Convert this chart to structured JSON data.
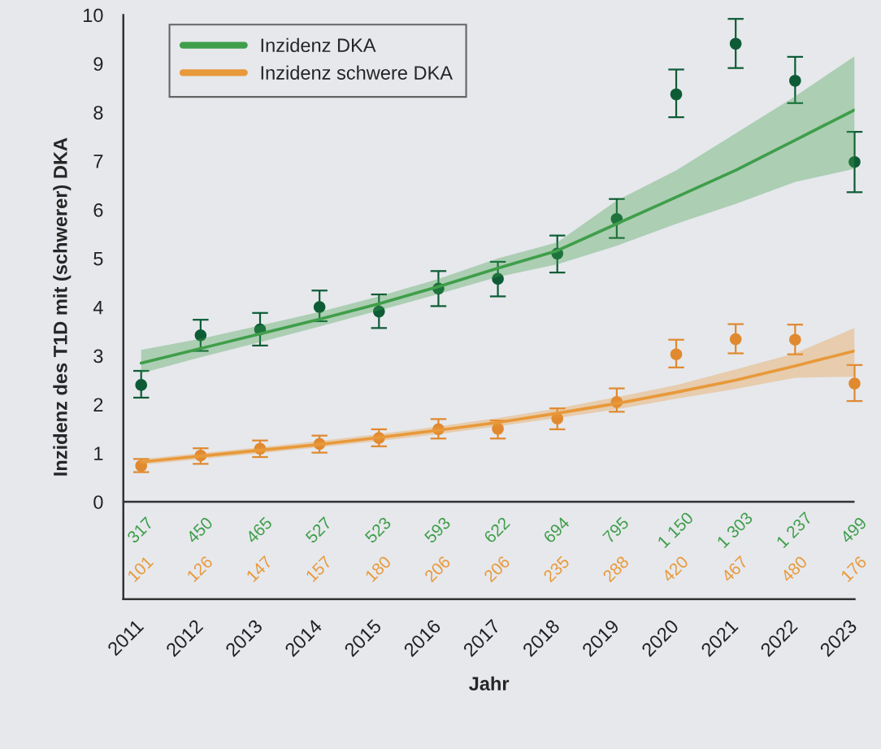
{
  "chart_data": {
    "type": "line",
    "xlabel": "Jahr",
    "ylabel": "Inzidenz des T1D mit (schwerer) DKA",
    "x": [
      2011,
      2012,
      2013,
      2014,
      2015,
      2016,
      2017,
      2018,
      2019,
      2020,
      2021,
      2022,
      2023
    ],
    "series": [
      {
        "type": "scatter",
        "marker": "circle",
        "color": "#0d5c36",
        "values": [
          2.4,
          3.42,
          3.54,
          4.0,
          3.91,
          4.38,
          4.58,
          5.1,
          5.81,
          8.37,
          9.41,
          8.65,
          6.98
        ],
        "errors": [
          [
            2.14,
            2.69
          ],
          [
            3.1,
            3.74
          ],
          [
            3.21,
            3.88
          ],
          [
            3.71,
            4.34
          ],
          [
            3.57,
            4.26
          ],
          [
            4.02,
            4.74
          ],
          [
            4.22,
            4.93
          ],
          [
            4.71,
            5.47
          ],
          [
            5.42,
            6.22
          ],
          [
            7.9,
            8.88
          ],
          [
            8.91,
            9.92
          ],
          [
            8.19,
            9.14
          ],
          [
            6.36,
            7.6
          ]
        ]
      },
      {
        "type": "scatter",
        "marker": "circle",
        "color": "#e0892f",
        "values": [
          0.74,
          0.95,
          1.09,
          1.19,
          1.31,
          1.49,
          1.5,
          1.71,
          2.05,
          3.03,
          3.34,
          3.33,
          2.43
        ],
        "errors": [
          [
            0.61,
            0.88
          ],
          [
            0.78,
            1.1
          ],
          [
            0.92,
            1.26
          ],
          [
            1.01,
            1.36
          ],
          [
            1.14,
            1.49
          ],
          [
            1.3,
            1.7
          ],
          [
            1.3,
            1.67
          ],
          [
            1.49,
            1.92
          ],
          [
            1.85,
            2.33
          ],
          [
            2.76,
            3.33
          ],
          [
            3.05,
            3.65
          ],
          [
            3.03,
            3.64
          ],
          [
            2.07,
            2.81
          ]
        ]
      },
      {
        "name": "Inzidenz DKA",
        "color": "#3f9e4a",
        "values": [
          2.85,
          3.15,
          3.45,
          3.75,
          4.07,
          4.42,
          4.8,
          5.16,
          5.71,
          6.26,
          6.81,
          7.43,
          8.05
        ],
        "lower": [
          2.64,
          2.97,
          3.28,
          3.6,
          3.93,
          4.27,
          4.62,
          4.88,
          5.26,
          5.71,
          6.12,
          6.57,
          6.84
        ],
        "upper": [
          3.12,
          3.35,
          3.62,
          3.9,
          4.22,
          4.58,
          5.0,
          5.33,
          6.19,
          6.81,
          7.57,
          8.33,
          9.15
        ]
      },
      {
        "name": "Inzidenz schwere DKA",
        "color": "#e8993a",
        "values": [
          0.82,
          0.94,
          1.06,
          1.18,
          1.32,
          1.47,
          1.63,
          1.82,
          2.02,
          2.25,
          2.5,
          2.79,
          3.1
        ],
        "lower": [
          0.76,
          0.88,
          1.0,
          1.12,
          1.25,
          1.39,
          1.55,
          1.72,
          1.9,
          2.12,
          2.32,
          2.55,
          2.57
        ],
        "upper": [
          0.88,
          1.0,
          1.12,
          1.25,
          1.39,
          1.55,
          1.72,
          1.92,
          2.15,
          2.4,
          2.72,
          3.05,
          3.57
        ]
      }
    ],
    "xlim": [
      2010.7,
      2023.0
    ],
    "xticks": [
      2011,
      2012,
      2013,
      2014,
      2015,
      2016,
      2017,
      2018,
      2019,
      2020,
      2021,
      2022,
      2023
    ],
    "ylim": [
      -2.0,
      10.0
    ],
    "yticks": [
      0,
      1,
      2,
      3,
      4,
      5,
      6,
      7,
      8,
      9,
      10
    ],
    "ref_lines": [
      {
        "axis": "y",
        "value": 0,
        "color": "#333333"
      }
    ],
    "annotations": [
      "317",
      "450",
      "465",
      "527",
      "523",
      "593",
      "622",
      "694",
      "795",
      "1 150",
      "1 303",
      "1 237",
      "499",
      "101",
      "126",
      "147",
      "157",
      "180",
      "206",
      "206",
      "235",
      "288",
      "420",
      "467",
      "480",
      "176"
    ],
    "grid": false,
    "legend": "top left",
    "marker": "none",
    "line_style": "solid"
  }
}
